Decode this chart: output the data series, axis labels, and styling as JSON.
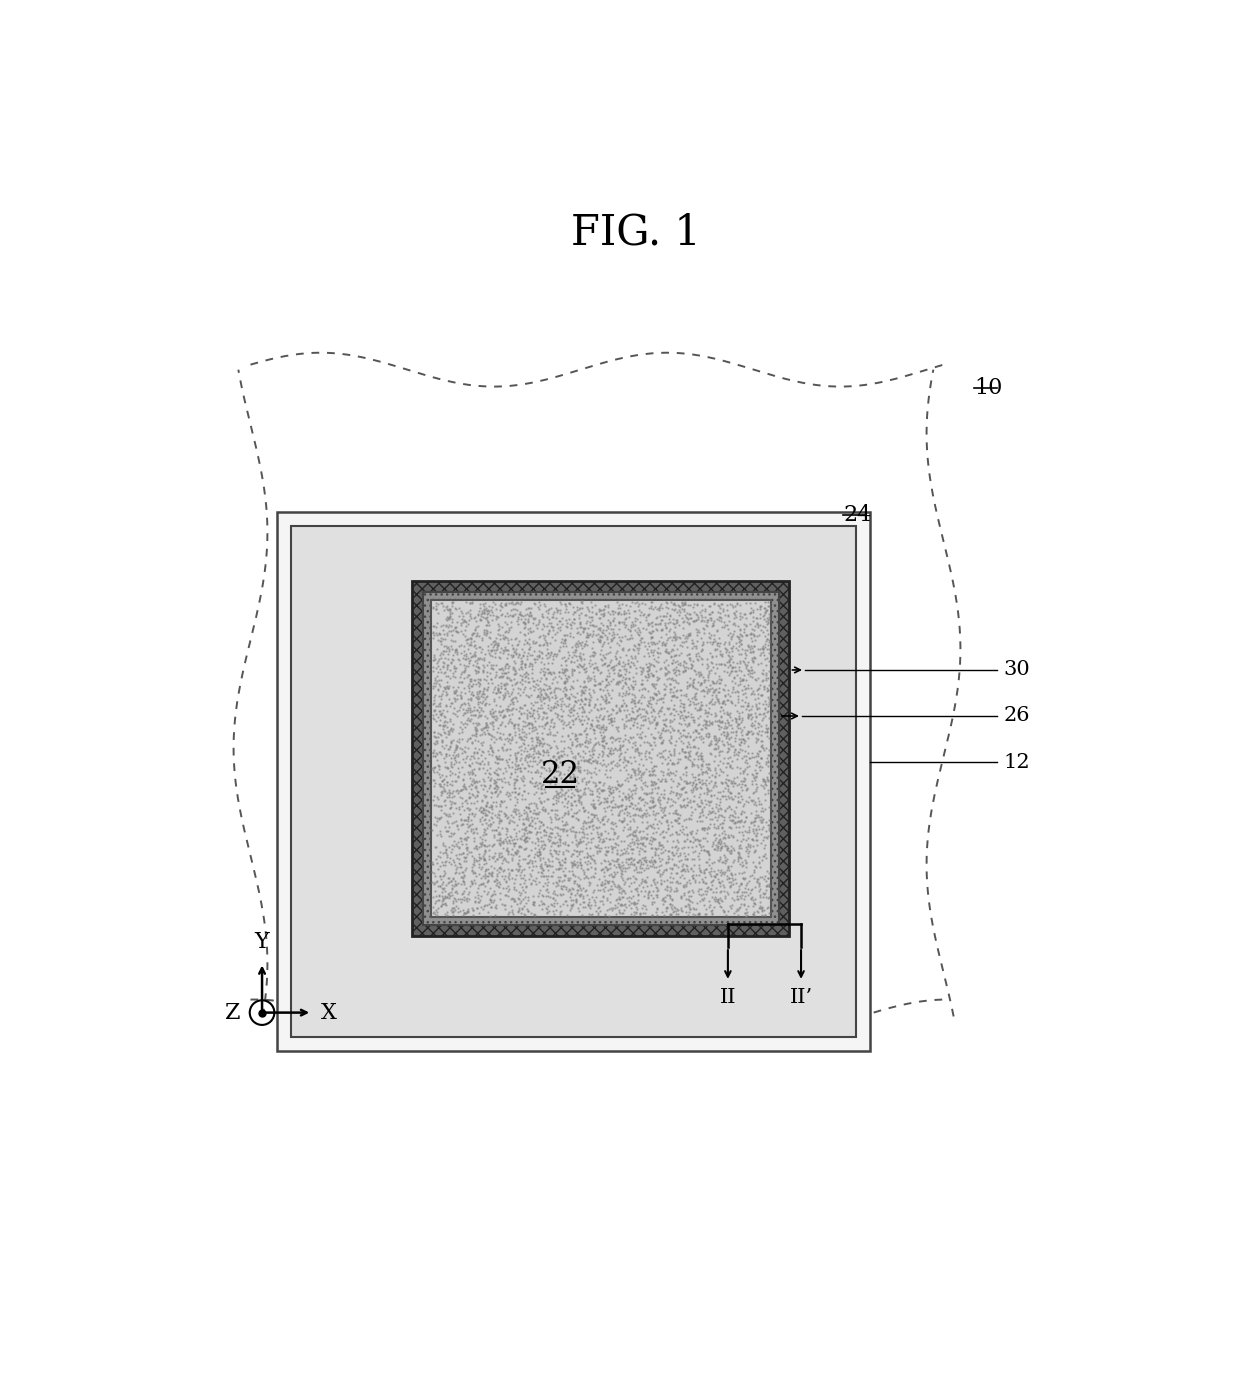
{
  "title": "FIG. 1",
  "title_fontsize": 30,
  "bg_color": "#ffffff",
  "label_10": "10",
  "label_12": "12",
  "label_22": "22",
  "label_24": "24",
  "label_26": "26",
  "label_30": "30",
  "label_II": "II",
  "label_IIp": "II’",
  "axis_Y": "Y",
  "axis_X": "X",
  "axis_Z": "Z",
  "wavy_dash_color": "#555555",
  "rect12_face": "#f5f5f5",
  "rect12_edge": "#444444",
  "rect24_face": "#e0e0e0",
  "rect24_edge": "#444444",
  "hatch_dark_face": "#606060",
  "hatch_dark_edge": "#222222",
  "hatch_light_face": "#909090",
  "hatch_light_edge": "#444444",
  "rect22_face": "#d4d4d4",
  "rect22_edge": "#555555",
  "dot_color": "#888888",
  "leader_color": "#222222",
  "text_color": "#000000"
}
